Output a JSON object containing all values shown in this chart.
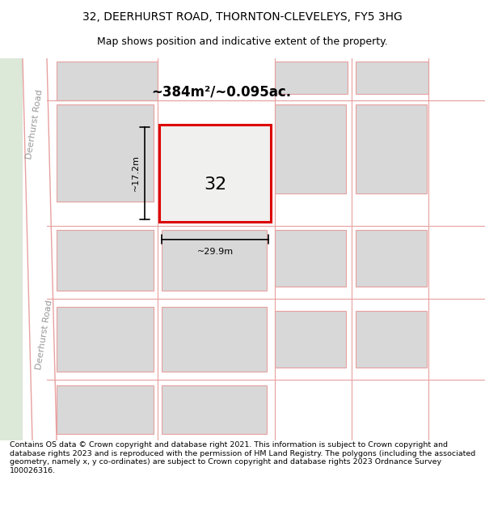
{
  "title": "32, DEERHURST ROAD, THORNTON-CLEVELEYS, FY5 3HG",
  "subtitle": "Map shows position and indicative extent of the property.",
  "footer": "Contains OS data © Crown copyright and database right 2021. This information is subject to Crown copyright and database rights 2023 and is reproduced with the permission of HM Land Registry. The polygons (including the associated geometry, namely x, y co-ordinates) are subject to Crown copyright and database rights 2023 Ordnance Survey 100026316.",
  "map_bg": "#f0f0ec",
  "road_fill": "#ffffff",
  "road_stroke": "#e8a0a0",
  "block_color": "#d8d8d8",
  "highlight_color": "#dd0000",
  "highlight_fill": "#f0f0ee",
  "road_label": "Deerhurst Road",
  "property_label": "32",
  "area_label": "~384m²/~0.095ac.",
  "width_label": "~29.9m",
  "height_label": "~17.2m",
  "green_strip_color": "#dce8d8",
  "title_fontsize": 10,
  "subtitle_fontsize": 9,
  "footer_fontsize": 6.8
}
